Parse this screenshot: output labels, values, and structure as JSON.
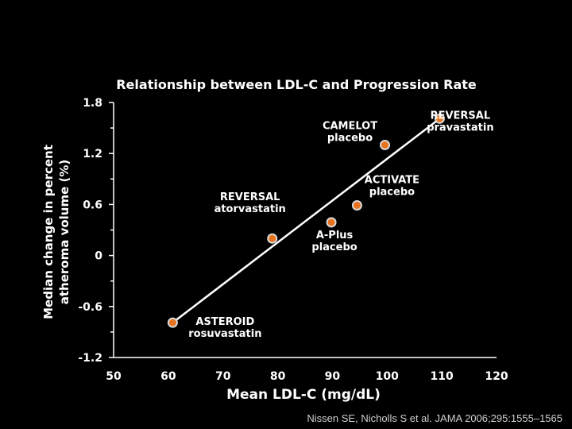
{
  "chart_data": {
    "type": "scatter",
    "title": "Relationship between LDL-C and Progression Rate",
    "xlabel": "Mean LDL-C (mg/dL)",
    "ylabel_lines": [
      "Median change in percent",
      "atheroma volume (%)"
    ],
    "xlim": [
      50,
      120
    ],
    "ylim": [
      -1.2,
      1.8
    ],
    "x_ticks": [
      50,
      60,
      70,
      80,
      90,
      100,
      110,
      120
    ],
    "y_ticks": [
      1.8,
      1.2,
      0.6,
      0,
      -0.6,
      -1.2
    ],
    "y_tick_labels": [
      "1.8",
      "1.2",
      "0.6",
      "0",
      "-0.6",
      "-1.2"
    ],
    "grid": false,
    "point_color": "#e8731e",
    "line_color": "#ffffff",
    "points": [
      {
        "x": 60.8,
        "y": -0.79,
        "label": [
          "ASTEROID",
          "rosuvastatin"
        ]
      },
      {
        "x": 79.0,
        "y": 0.2,
        "label": [
          "REVERSAL",
          "atorvastatin"
        ]
      },
      {
        "x": 89.8,
        "y": 0.39,
        "label": [
          "A-Plus",
          "placebo"
        ]
      },
      {
        "x": 94.5,
        "y": 0.59,
        "label": [
          "ACTIVATE",
          "placebo"
        ]
      },
      {
        "x": 99.6,
        "y": 1.3,
        "label": [
          "CAMELOT",
          "placebo"
        ]
      },
      {
        "x": 109.6,
        "y": 1.61,
        "label": [
          "REVERSAL",
          "pravastatin"
        ]
      }
    ],
    "fit_line": {
      "x": [
        60.8,
        109.6
      ],
      "y": [
        -0.79,
        1.61
      ]
    }
  },
  "citation": "Nissen SE, Nicholls S et al. JAMA 2006;295:1555–1565"
}
